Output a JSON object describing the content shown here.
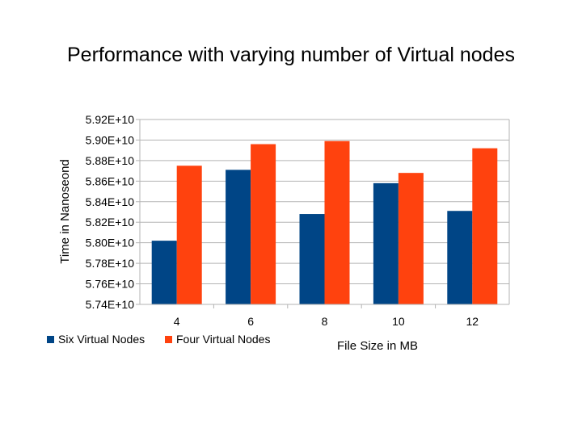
{
  "slide": {
    "title": "Performance with varying number of Virtual nodes"
  },
  "chart_data": {
    "type": "bar",
    "title": "",
    "xlabel": "File Size in MB",
    "ylabel": "Time in Nanoseond",
    "categories": [
      "4",
      "6",
      "8",
      "10",
      "12"
    ],
    "series": [
      {
        "name": "Six Virtual Nodes",
        "color": "#004586",
        "values": [
          58020000000.0,
          58710000000.0,
          58280000000.0,
          58580000000.0,
          58310000000.0
        ]
      },
      {
        "name": "Four Virtual Nodes",
        "color": "#ff420e",
        "values": [
          58750000000.0,
          58960000000.0,
          58990000000.0,
          58680000000.0,
          58920000000.0
        ]
      }
    ],
    "ylim": [
      57400000000.0,
      59200000000.0
    ],
    "yticks": [
      57400000000.0,
      57600000000.0,
      57800000000.0,
      58000000000.0,
      58200000000.0,
      58400000000.0,
      58600000000.0,
      58800000000.0,
      59000000000.0,
      59200000000.0
    ],
    "ytick_labels": [
      "5.74E+10",
      "5.76E+10",
      "5.78E+10",
      "5.80E+10",
      "5.82E+10",
      "5.84E+10",
      "5.86E+10",
      "5.88E+10",
      "5.90E+10",
      "5.92E+10"
    ],
    "grid": true,
    "legend_position": "bottom-left"
  }
}
